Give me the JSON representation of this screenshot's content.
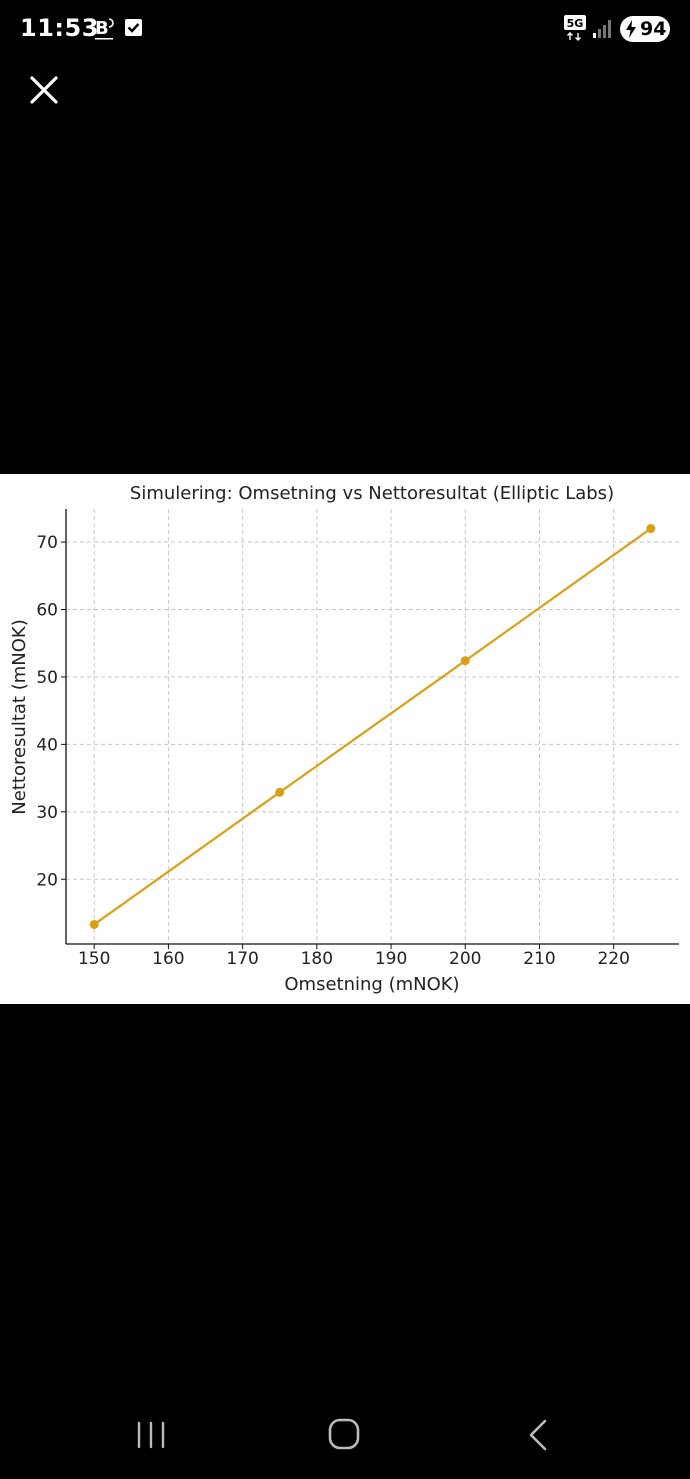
{
  "status_bar": {
    "time": "11:53",
    "network": "5G",
    "battery": "94"
  },
  "chart_data": {
    "type": "line",
    "title": "Simulering: Omsetning vs Nettoresultat (Elliptic Labs)",
    "xlabel": "Omsetning (mNOK)",
    "ylabel": "Nettoresultat (mNOK)",
    "x": [
      150,
      175,
      200,
      225
    ],
    "series": [
      {
        "values": [
          13.3,
          32.9,
          52.4,
          72.0
        ]
      }
    ],
    "xlim": [
      146.2,
      228.8
    ],
    "ylim": [
      10.4,
      74.9
    ],
    "x_ticks": [
      150,
      160,
      170,
      180,
      190,
      200,
      210,
      220
    ],
    "y_ticks": [
      20,
      30,
      40,
      50,
      60,
      70
    ],
    "grid": true,
    "color": "#DB9F13"
  }
}
